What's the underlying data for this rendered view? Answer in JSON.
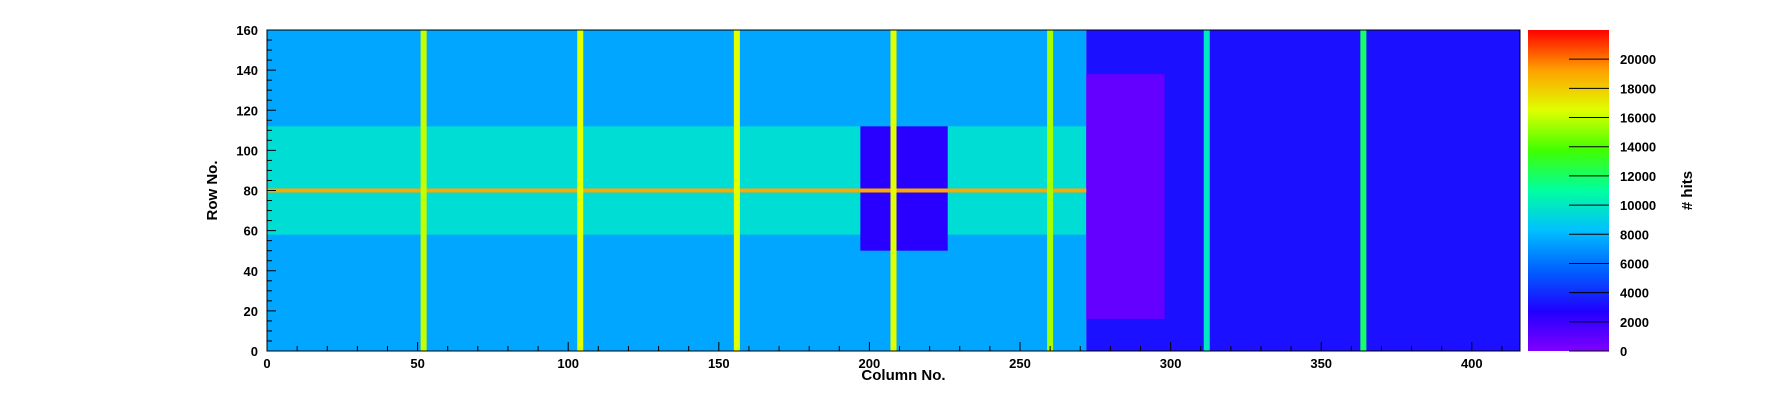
{
  "chart_data": {
    "type": "heatmap",
    "title": "",
    "xlabel": "Column No.",
    "ylabel": "Row No.",
    "zlabel": "# hits",
    "xlim": [
      0,
      416
    ],
    "ylim": [
      0,
      160
    ],
    "zlim": [
      0,
      22000
    ],
    "xticks": [
      0,
      50,
      100,
      150,
      200,
      250,
      300,
      350,
      400
    ],
    "yticks": [
      0,
      20,
      40,
      60,
      80,
      100,
      120,
      140,
      160
    ],
    "zticks": [
      0,
      2000,
      4000,
      6000,
      8000,
      10000,
      12000,
      14000,
      16000,
      18000,
      20000
    ],
    "grid": false,
    "colormap": "rainbow",
    "colors": [
      "#8000ff",
      "#2000ff",
      "#0060ff",
      "#00c0ff",
      "#00ffa0",
      "#40ff00",
      "#e0ff00",
      "#ffa000",
      "#ff0000"
    ],
    "hot_columns": [
      {
        "x": 52,
        "hits": 16000
      },
      {
        "x": 104,
        "hits": 16500
      },
      {
        "x": 156,
        "hits": 16500
      },
      {
        "x": 208,
        "hits": 16500
      },
      {
        "x": 260,
        "hits": 15500
      },
      {
        "x": 312,
        "hits": 10000
      },
      {
        "x": 364,
        "hits": 12000
      }
    ],
    "hot_row": {
      "y": 80,
      "hits": 19000
    },
    "regions": [
      {
        "x": [
          0,
          272
        ],
        "y": [
          0,
          160
        ],
        "hits": 7500
      },
      {
        "x": [
          0,
          272
        ],
        "y": [
          58,
          112
        ],
        "hits": 9500
      },
      {
        "x": [
          272,
          416
        ],
        "y": [
          0,
          160
        ],
        "hits": 3200
      },
      {
        "x": [
          272,
          298
        ],
        "y": [
          16,
          138
        ],
        "hits": 800
      },
      {
        "x": [
          197,
          226
        ],
        "y": [
          50,
          112
        ],
        "hits": 2500
      }
    ]
  }
}
